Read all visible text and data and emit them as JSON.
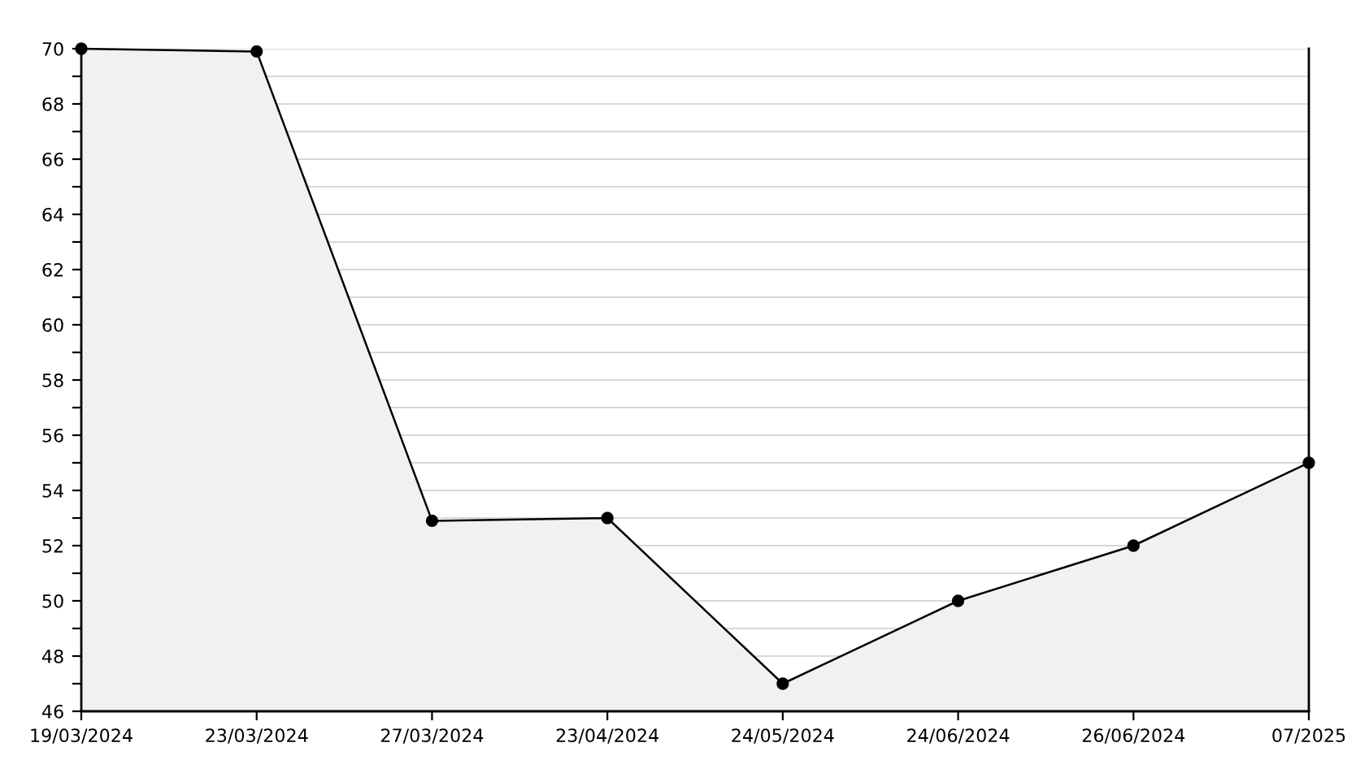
{
  "chart_data": {
    "type": "area",
    "categories": [
      "19/03/2024",
      "23/03/2024",
      "27/03/2024",
      "23/04/2024",
      "24/05/2024",
      "24/06/2024",
      "26/06/2024",
      "07/2025"
    ],
    "series": [
      {
        "color": "#000000",
        "values": [
          70,
          69.9,
          52.9,
          53,
          47,
          50,
          52,
          55
        ]
      }
    ],
    "ylim": [
      46,
      70
    ],
    "yticks": [
      46,
      {
        "value": 47,
        "label": null
      },
      48,
      {
        "value": 49,
        "label": null
      },
      50,
      {
        "value": 51,
        "label": null
      },
      52,
      {
        "value": 53,
        "label": null
      },
      54,
      {
        "value": 55,
        "label": null
      },
      56,
      {
        "value": 57,
        "label": null
      },
      58,
      {
        "value": 59,
        "label": null
      },
      60,
      {
        "value": 61,
        "label": null
      },
      62,
      {
        "value": 63,
        "label": null
      },
      64,
      {
        "value": 65,
        "label": null
      },
      66,
      {
        "value": 67,
        "label": null
      },
      68,
      {
        "value": 69,
        "label": null
      },
      70
    ],
    "grid": "y",
    "marker": "circle",
    "line_style": "solid",
    "legend": false
  }
}
